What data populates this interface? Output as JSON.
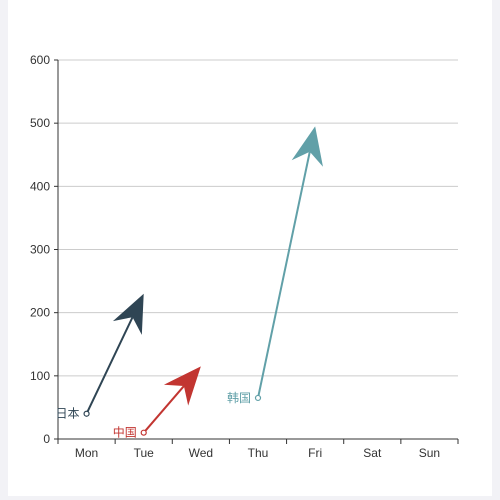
{
  "chart_data": {
    "type": "line",
    "categories": [
      "Mon",
      "Tue",
      "Wed",
      "Thu",
      "Fri",
      "Sat",
      "Sun"
    ],
    "ylim": [
      0,
      600
    ],
    "yticks": [
      0,
      100,
      200,
      300,
      400,
      500,
      600
    ],
    "grid": true,
    "series": [
      {
        "name": "日本",
        "color": "#2f4554",
        "points": [
          {
            "x": "Mon",
            "y": 40
          },
          {
            "x": "Tue",
            "y": 230
          }
        ]
      },
      {
        "name": "中国",
        "color": "#c23531",
        "points": [
          {
            "x": "Tue",
            "y": 10
          },
          {
            "x": "Wed",
            "y": 115
          }
        ]
      },
      {
        "name": "韩国",
        "color": "#61a0a8",
        "points": [
          {
            "x": "Thu",
            "y": 65
          },
          {
            "x": "Fri",
            "y": 495
          }
        ]
      }
    ]
  }
}
